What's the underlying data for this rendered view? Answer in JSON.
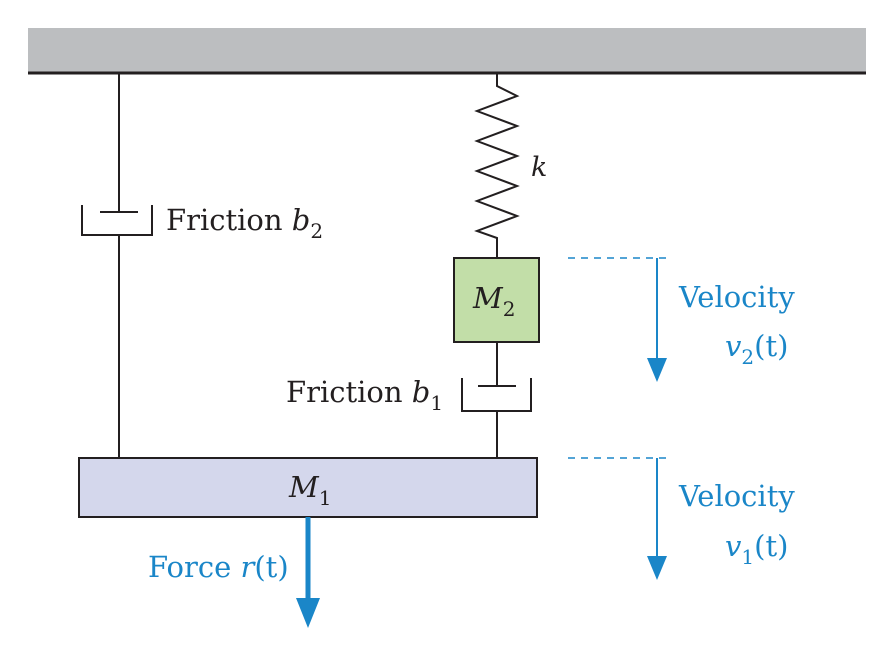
{
  "diagram": {
    "spring_label": "k",
    "friction_b2": {
      "prefix": "Friction ",
      "var": "b",
      "sub": "2"
    },
    "friction_b1": {
      "prefix": "Friction ",
      "var": "b",
      "sub": "1"
    },
    "mass_2": {
      "var": "M",
      "sub": "2"
    },
    "mass_1": {
      "var": "M",
      "sub": "1"
    },
    "force": {
      "prefix": "Force ",
      "var": "r",
      "arg": "(t)"
    },
    "velocity_2": {
      "word": "Velocity",
      "var": "v",
      "sub": "2",
      "arg": "(t)"
    },
    "velocity_1": {
      "word": "Velocity",
      "var": "v",
      "sub": "1",
      "arg": "(t)"
    }
  },
  "colors": {
    "ceiling": "#bcbec0",
    "mass_2_fill": "#c2dea8",
    "mass_1_fill": "#d4d7ec",
    "accent_blue": "#1a86c8",
    "line": "#231f20"
  }
}
